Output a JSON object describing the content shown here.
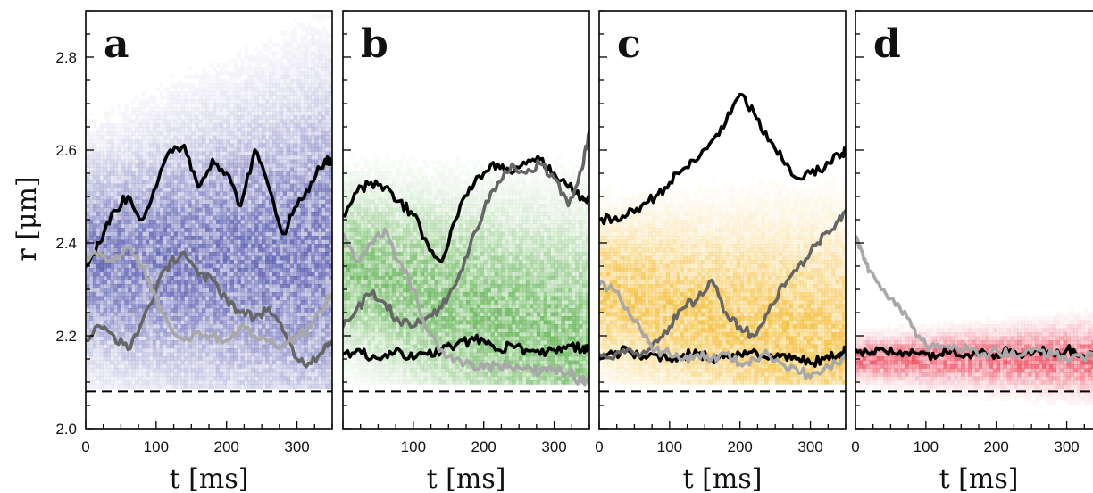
{
  "chart_data": {
    "type": "scatter",
    "ylabel": "r  [μm]",
    "y_ticks": [
      "2.0",
      "2.2",
      "2.4",
      "2.6",
      "2.8"
    ],
    "y_tick_values": [
      2.0,
      2.2,
      2.4,
      2.6,
      2.8
    ],
    "ylim": [
      2.0,
      2.9
    ],
    "xlim": [
      0,
      350
    ],
    "dashed_line_y": 2.08,
    "panels": [
      {
        "letter": "a",
        "xlabel": "t  [ms]",
        "x_ticks": [
          "0",
          "100",
          "200",
          "300"
        ],
        "x_tick_values": [
          0,
          100,
          200,
          300
        ],
        "density_color": "#3a3fa0",
        "density": {
          "center_start": 2.36,
          "center_end": 2.38,
          "spread": 0.17,
          "floor": 2.09
        },
        "series": [
          {
            "shade": "#000000",
            "x": [
              0,
              20,
              40,
              60,
              80,
              100,
              120,
              140,
              160,
              180,
              200,
              220,
              240,
              260,
              280,
              300,
              320,
              340,
              350
            ],
            "y": [
              2.35,
              2.4,
              2.47,
              2.5,
              2.45,
              2.52,
              2.6,
              2.61,
              2.52,
              2.58,
              2.55,
              2.48,
              2.6,
              2.52,
              2.42,
              2.48,
              2.53,
              2.58,
              2.57
            ]
          },
          {
            "shade": "#666666",
            "x": [
              0,
              20,
              40,
              60,
              80,
              100,
              120,
              140,
              160,
              180,
              200,
              220,
              240,
              260,
              280,
              300,
              320,
              340,
              350
            ],
            "y": [
              2.19,
              2.22,
              2.2,
              2.17,
              2.23,
              2.3,
              2.36,
              2.38,
              2.33,
              2.32,
              2.28,
              2.25,
              2.24,
              2.26,
              2.21,
              2.15,
              2.14,
              2.18,
              2.19
            ]
          },
          {
            "shade": "#a8a8a8",
            "x": [
              0,
              20,
              40,
              60,
              80,
              100,
              120,
              140,
              160,
              180,
              200,
              220,
              240,
              260,
              280,
              300,
              320,
              340,
              350
            ],
            "y": [
              2.37,
              2.38,
              2.36,
              2.39,
              2.35,
              2.28,
              2.22,
              2.19,
              2.21,
              2.2,
              2.19,
              2.22,
              2.2,
              2.19,
              2.18,
              2.2,
              2.22,
              2.27,
              2.29
            ]
          }
        ]
      },
      {
        "letter": "b",
        "xlabel": "t  [ms]",
        "x_ticks": [
          "100",
          "200",
          "300"
        ],
        "x_tick_values": [
          100,
          200,
          300
        ],
        "density_color": "#4aa83a",
        "density": {
          "center_start": 2.35,
          "center_end": 2.18,
          "spread": 0.13,
          "floor": 2.1
        },
        "series": [
          {
            "shade": "#000000",
            "x": [
              0,
              20,
              40,
              60,
              80,
              100,
              120,
              140,
              160,
              180,
              200,
              220,
              240,
              260,
              280,
              300,
              320,
              340,
              350
            ],
            "y": [
              2.46,
              2.51,
              2.53,
              2.52,
              2.49,
              2.46,
              2.4,
              2.36,
              2.45,
              2.52,
              2.55,
              2.57,
              2.55,
              2.57,
              2.58,
              2.55,
              2.52,
              2.5,
              2.49
            ]
          },
          {
            "shade": "#000000",
            "x": [
              0,
              20,
              40,
              60,
              80,
              100,
              120,
              140,
              160,
              180,
              200,
              220,
              240,
              260,
              280,
              300,
              320,
              340,
              350
            ],
            "y": [
              2.16,
              2.17,
              2.15,
              2.16,
              2.17,
              2.15,
              2.16,
              2.17,
              2.18,
              2.19,
              2.19,
              2.17,
              2.18,
              2.17,
              2.16,
              2.17,
              2.18,
              2.17,
              2.17
            ]
          },
          {
            "shade": "#666666",
            "x": [
              0,
              20,
              40,
              60,
              80,
              100,
              120,
              140,
              160,
              180,
              200,
              220,
              240,
              260,
              280,
              300,
              320,
              340,
              350
            ],
            "y": [
              2.22,
              2.26,
              2.29,
              2.27,
              2.23,
              2.22,
              2.24,
              2.26,
              2.31,
              2.39,
              2.47,
              2.53,
              2.57,
              2.55,
              2.57,
              2.54,
              2.48,
              2.56,
              2.64
            ]
          },
          {
            "shade": "#a8a8a8",
            "x": [
              0,
              20,
              40,
              60,
              80,
              100,
              120,
              140,
              160,
              180,
              200,
              220,
              240,
              260,
              280,
              300,
              320,
              340,
              350
            ],
            "y": [
              2.42,
              2.36,
              2.4,
              2.43,
              2.36,
              2.3,
              2.21,
              2.17,
              2.15,
              2.14,
              2.13,
              2.14,
              2.13,
              2.13,
              2.12,
              2.13,
              2.12,
              2.1,
              2.11
            ]
          }
        ]
      },
      {
        "letter": "c",
        "xlabel": "t  [ms]",
        "x_ticks": [
          "0",
          "100",
          "200",
          "300"
        ],
        "x_tick_values": [
          0,
          100,
          200,
          300
        ],
        "density_color": "#f2b215",
        "density": {
          "center_start": 2.3,
          "center_end": 2.18,
          "spread": 0.12,
          "floor": 2.1
        },
        "series": [
          {
            "shade": "#000000",
            "x": [
              0,
              20,
              40,
              60,
              80,
              100,
              120,
              140,
              160,
              180,
              200,
              220,
              240,
              260,
              280,
              300,
              320,
              340,
              350
            ],
            "y": [
              2.45,
              2.45,
              2.46,
              2.48,
              2.5,
              2.53,
              2.56,
              2.58,
              2.62,
              2.66,
              2.72,
              2.68,
              2.62,
              2.58,
              2.54,
              2.55,
              2.56,
              2.59,
              2.6
            ]
          },
          {
            "shade": "#000000",
            "x": [
              0,
              20,
              40,
              60,
              80,
              100,
              120,
              140,
              160,
              180,
              200,
              220,
              240,
              260,
              280,
              300,
              320,
              340,
              350
            ],
            "y": [
              2.15,
              2.16,
              2.17,
              2.15,
              2.16,
              2.15,
              2.16,
              2.16,
              2.15,
              2.16,
              2.16,
              2.17,
              2.15,
              2.16,
              2.15,
              2.14,
              2.15,
              2.16,
              2.17
            ]
          },
          {
            "shade": "#666666",
            "x": [
              0,
              20,
              40,
              60,
              80,
              100,
              120,
              140,
              160,
              180,
              200,
              220,
              240,
              260,
              280,
              300,
              320,
              340,
              350
            ],
            "y": [
              2.16,
              2.15,
              2.17,
              2.16,
              2.19,
              2.22,
              2.26,
              2.28,
              2.32,
              2.25,
              2.22,
              2.2,
              2.25,
              2.31,
              2.34,
              2.38,
              2.42,
              2.45,
              2.47
            ]
          },
          {
            "shade": "#a8a8a8",
            "x": [
              0,
              20,
              40,
              60,
              80,
              100,
              120,
              140,
              160,
              180,
              200,
              220,
              240,
              260,
              280,
              300,
              320,
              340,
              350
            ],
            "y": [
              2.31,
              2.3,
              2.26,
              2.21,
              2.17,
              2.16,
              2.15,
              2.16,
              2.15,
              2.16,
              2.14,
              2.15,
              2.16,
              2.14,
              2.13,
              2.11,
              2.13,
              2.14,
              2.15
            ]
          }
        ]
      },
      {
        "letter": "d",
        "xlabel": "t  [ms]",
        "x_ticks": [
          "0",
          "100",
          "200",
          "300"
        ],
        "x_tick_values": [
          0,
          100,
          200,
          300
        ],
        "density_color": "#e8223a",
        "density": {
          "center_start": 2.155,
          "center_end": 2.155,
          "spread": 0.035,
          "floor": 2.06
        },
        "series": [
          {
            "shade": "#000000",
            "x": [
              0,
              20,
              40,
              60,
              80,
              100,
              120,
              140,
              160,
              180,
              200,
              220,
              240,
              260,
              280,
              300,
              320,
              340,
              350
            ],
            "y": [
              2.17,
              2.16,
              2.17,
              2.16,
              2.17,
              2.16,
              2.16,
              2.17,
              2.16,
              2.17,
              2.16,
              2.17,
              2.16,
              2.17,
              2.16,
              2.17,
              2.16,
              2.17,
              2.18
            ]
          },
          {
            "shade": "#a8a8a8",
            "x": [
              0,
              10,
              20,
              40,
              60,
              80,
              100,
              120,
              140,
              160,
              180,
              200,
              220,
              240,
              260,
              280,
              300,
              320,
              340,
              350
            ],
            "y": [
              2.41,
              2.38,
              2.34,
              2.3,
              2.27,
              2.22,
              2.18,
              2.17,
              2.18,
              2.17,
              2.16,
              2.17,
              2.16,
              2.16,
              2.17,
              2.16,
              2.15,
              2.16,
              2.15,
              2.14
            ]
          }
        ]
      }
    ]
  }
}
